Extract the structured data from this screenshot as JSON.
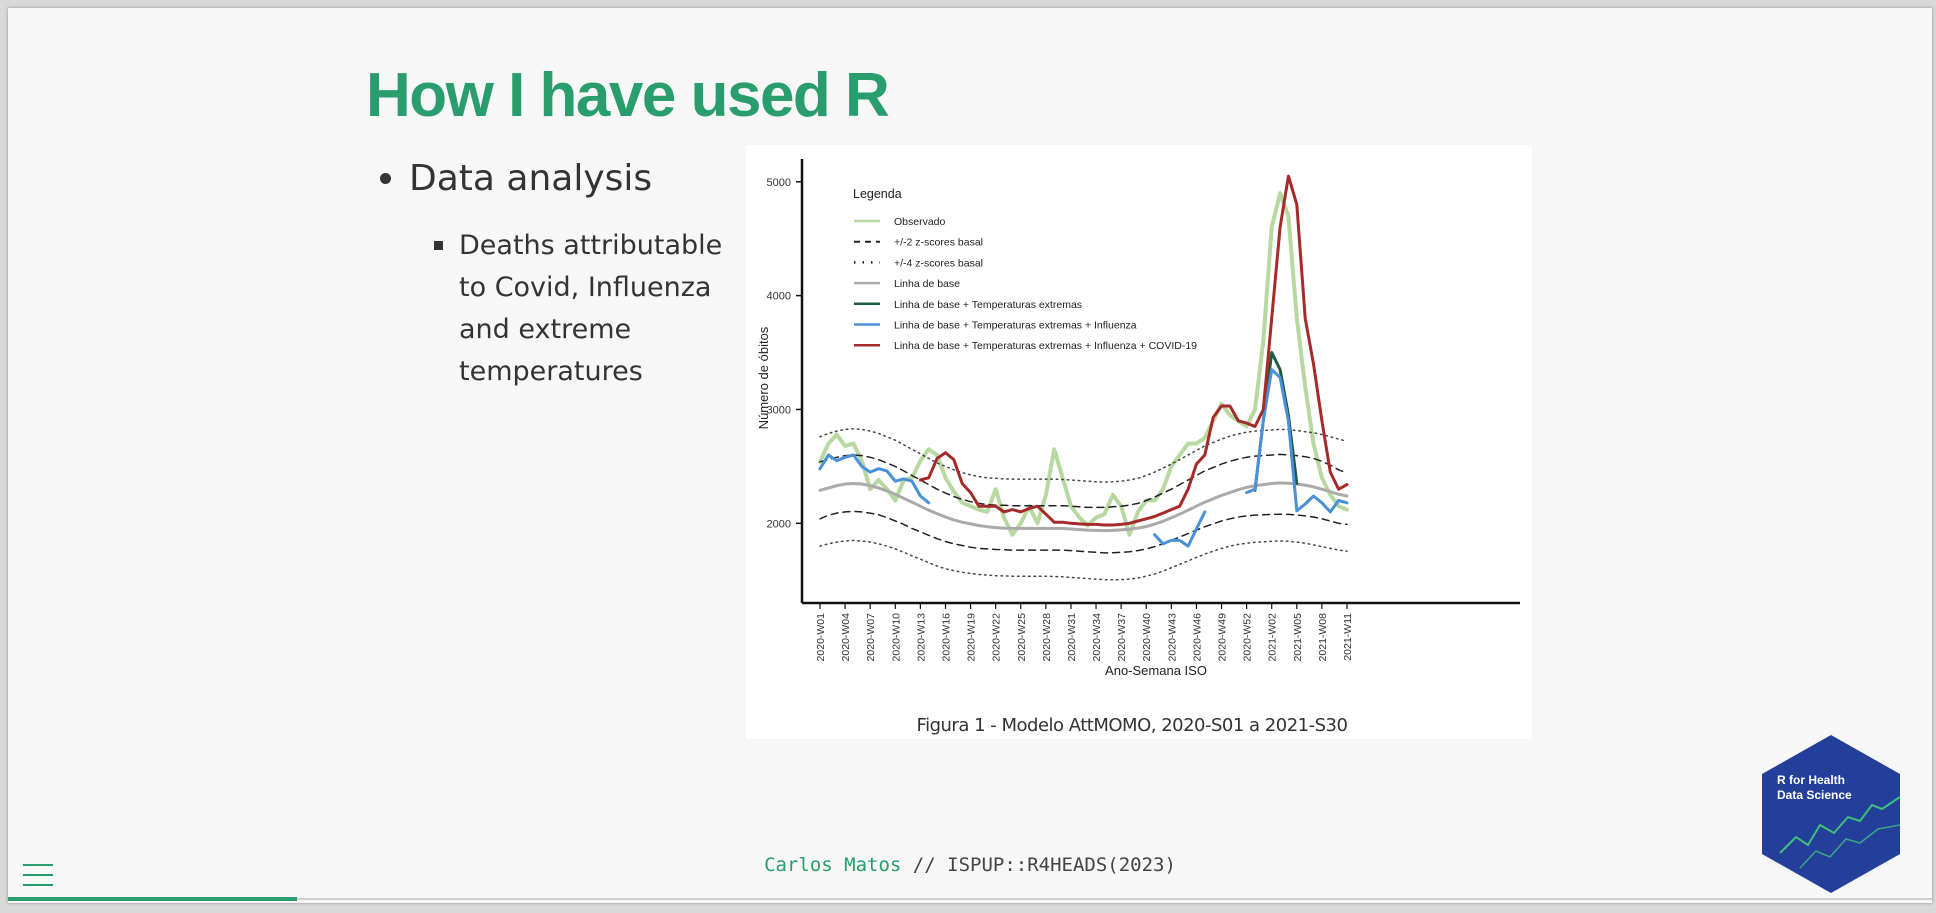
{
  "slide": {
    "title": "How I have used R",
    "bullets": [
      {
        "text": "Data analysis",
        "sub": [
          "Deaths attributable to Covid, Influenza and extreme temperatures"
        ]
      }
    ]
  },
  "figure": {
    "caption": "Figura 1 - Modelo AttMOMO, 2020-S01 a 2021-S30"
  },
  "footer": {
    "author": "Carlos Matos",
    "separator": " // ",
    "course": "ISPUP::R4HEADS(2023)"
  },
  "progress": {
    "fraction": 0.15
  },
  "logo": {
    "line1": "R for Health",
    "line2": "Data Science",
    "color": "#233f9a"
  },
  "icons": {
    "menu": "hamburger-menu-icon"
  },
  "colors": {
    "accent": "#2a9d6d",
    "observed": "#b7d8a0",
    "baseline": "#aaaaaa",
    "temp": "#1e5a3c",
    "influenza": "#4a90d9",
    "covid": "#a52a2a"
  },
  "chart_data": {
    "type": "line",
    "xlabel": "Ano-Semana ISO",
    "ylabel": "Número de óbitos",
    "legend_title": "Legenda",
    "legend_position": "top-left",
    "ylim": [
      1300,
      5200
    ],
    "yticks": [
      2000,
      3000,
      4000,
      5000
    ],
    "xticks": [
      "2020-W01",
      "2020-W04",
      "2020-W07",
      "2020-W10",
      "2020-W13",
      "2020-W16",
      "2020-W19",
      "2020-W22",
      "2020-W25",
      "2020-W28",
      "2020-W31",
      "2020-W34",
      "2020-W37",
      "2020-W40",
      "2020-W43",
      "2020-W46",
      "2020-W49",
      "2020-W52",
      "2021-W02",
      "2021-W05",
      "2021-W08",
      "2021-W11"
    ],
    "grid": false,
    "x_weeks": [
      1,
      2,
      3,
      4,
      5,
      6,
      7,
      8,
      9,
      10,
      11,
      12,
      13,
      14,
      15,
      16,
      17,
      18,
      19,
      20,
      21,
      22,
      23,
      24,
      25,
      26,
      27,
      28,
      29,
      30,
      31,
      32,
      33,
      34,
      35,
      36,
      37,
      38,
      39,
      40,
      41,
      42,
      43,
      44,
      45,
      46,
      47,
      48,
      49,
      50,
      51,
      52,
      53,
      54,
      55,
      56,
      57,
      58,
      59,
      60,
      61,
      62,
      63,
      64
    ],
    "series": [
      {
        "name": "Observado",
        "style": "solid",
        "color": "#b7d8a0",
        "width": 4,
        "values": [
          2540,
          2700,
          2780,
          2680,
          2700,
          2550,
          2300,
          2380,
          2300,
          2200,
          2380,
          2400,
          2550,
          2650,
          2600,
          2400,
          2280,
          2180,
          2150,
          2120,
          2100,
          2300,
          2050,
          1900,
          2000,
          2150,
          2000,
          2250,
          2650,
          2400,
          2150,
          2050,
          1980,
          2050,
          2080,
          2250,
          2150,
          1900,
          2100,
          2200,
          2200,
          2300,
          2500,
          2600,
          2700,
          2700,
          2750,
          2900,
          3050,
          2950,
          2900,
          2850,
          3000,
          3600,
          4600,
          4900,
          4700,
          3800,
          3200,
          2700,
          2400,
          2250,
          2150,
          2120
        ]
      },
      {
        "name": "+/-2 z-scores basal (upper)",
        "style": "dashed",
        "color": "#222222",
        "width": 1.5,
        "values": [
          2540,
          2560,
          2580,
          2595,
          2600,
          2595,
          2580,
          2560,
          2530,
          2500,
          2460,
          2420,
          2380,
          2340,
          2300,
          2265,
          2235,
          2210,
          2190,
          2175,
          2165,
          2160,
          2158,
          2155,
          2155,
          2155,
          2155,
          2155,
          2155,
          2155,
          2150,
          2145,
          2140,
          2140,
          2140,
          2145,
          2150,
          2160,
          2175,
          2200,
          2230,
          2265,
          2300,
          2340,
          2380,
          2420,
          2460,
          2490,
          2520,
          2545,
          2565,
          2580,
          2590,
          2595,
          2600,
          2605,
          2600,
          2595,
          2585,
          2570,
          2545,
          2510,
          2470,
          2440
        ]
      },
      {
        "name": "+/-2 z-scores basal (lower)",
        "style": "dashed",
        "color": "#222222",
        "width": 1.5,
        "values": [
          2040,
          2070,
          2090,
          2100,
          2105,
          2100,
          2090,
          2075,
          2050,
          2020,
          1990,
          1955,
          1925,
          1895,
          1865,
          1840,
          1820,
          1805,
          1790,
          1780,
          1775,
          1770,
          1768,
          1765,
          1765,
          1765,
          1765,
          1765,
          1765,
          1765,
          1760,
          1755,
          1750,
          1745,
          1740,
          1742,
          1745,
          1750,
          1760,
          1775,
          1795,
          1820,
          1850,
          1880,
          1910,
          1940,
          1970,
          1995,
          2020,
          2040,
          2055,
          2065,
          2072,
          2075,
          2078,
          2080,
          2078,
          2073,
          2065,
          2055,
          2040,
          2020,
          2000,
          1990
        ]
      },
      {
        "name": "+/-4 z-scores basal (upper)",
        "style": "dotted",
        "color": "#444444",
        "width": 1.5,
        "values": [
          2760,
          2790,
          2810,
          2825,
          2830,
          2825,
          2810,
          2790,
          2760,
          2730,
          2690,
          2650,
          2610,
          2570,
          2530,
          2500,
          2470,
          2445,
          2425,
          2410,
          2400,
          2395,
          2390,
          2388,
          2388,
          2388,
          2388,
          2388,
          2388,
          2385,
          2380,
          2375,
          2370,
          2365,
          2362,
          2365,
          2370,
          2380,
          2395,
          2420,
          2450,
          2485,
          2520,
          2560,
          2600,
          2640,
          2680,
          2710,
          2740,
          2765,
          2785,
          2800,
          2810,
          2815,
          2820,
          2825,
          2822,
          2815,
          2805,
          2795,
          2780,
          2760,
          2740,
          2720
        ]
      },
      {
        "name": "+/-4 z-scores basal (lower)",
        "style": "dotted",
        "color": "#444444",
        "width": 1.5,
        "values": [
          1800,
          1820,
          1835,
          1845,
          1850,
          1845,
          1835,
          1820,
          1800,
          1775,
          1745,
          1715,
          1685,
          1655,
          1625,
          1600,
          1585,
          1570,
          1560,
          1550,
          1545,
          1540,
          1538,
          1535,
          1535,
          1535,
          1535,
          1535,
          1532,
          1530,
          1525,
          1520,
          1515,
          1510,
          1505,
          1505,
          1505,
          1510,
          1520,
          1535,
          1555,
          1580,
          1610,
          1640,
          1670,
          1700,
          1730,
          1755,
          1780,
          1800,
          1815,
          1825,
          1832,
          1838,
          1842,
          1845,
          1842,
          1835,
          1825,
          1810,
          1795,
          1780,
          1765,
          1755
        ]
      },
      {
        "name": "Linha de base",
        "style": "solid",
        "color": "#aaaaaa",
        "width": 3,
        "values": [
          2290,
          2310,
          2330,
          2345,
          2350,
          2345,
          2330,
          2310,
          2285,
          2255,
          2220,
          2185,
          2150,
          2115,
          2085,
          2055,
          2030,
          2010,
          1995,
          1980,
          1970,
          1962,
          1958,
          1955,
          1955,
          1955,
          1955,
          1955,
          1955,
          1955,
          1950,
          1945,
          1940,
          1938,
          1936,
          1938,
          1942,
          1948,
          1958,
          1972,
          1992,
          2018,
          2048,
          2080,
          2115,
          2150,
          2185,
          2215,
          2245,
          2270,
          2295,
          2315,
          2330,
          2340,
          2350,
          2355,
          2352,
          2345,
          2335,
          2320,
          2300,
          2278,
          2255,
          2240
        ]
      },
      {
        "name": "Linha de base + Temperaturas extremas",
        "style": "solid",
        "color": "#1e5a3c",
        "width": 3,
        "values": [
          null,
          null,
          null,
          null,
          null,
          null,
          null,
          null,
          null,
          null,
          null,
          null,
          null,
          null,
          null,
          null,
          null,
          null,
          null,
          null,
          null,
          null,
          null,
          null,
          null,
          null,
          null,
          null,
          null,
          null,
          null,
          null,
          null,
          null,
          null,
          null,
          null,
          null,
          null,
          null,
          null,
          null,
          null,
          null,
          null,
          null,
          null,
          null,
          null,
          null,
          null,
          null,
          2290,
          2900,
          3500,
          3350,
          2950,
          2350,
          null,
          null,
          null,
          null,
          null,
          null
        ]
      },
      {
        "name": "Linha de base + Temperaturas extremas + Influenza",
        "style": "solid",
        "color": "#4a90d9",
        "width": 3,
        "values": [
          2480,
          2600,
          2550,
          2580,
          2600,
          2500,
          2450,
          2480,
          2460,
          2370,
          2390,
          2370,
          2240,
          2180,
          null,
          null,
          null,
          null,
          null,
          null,
          null,
          null,
          null,
          null,
          null,
          null,
          null,
          null,
          null,
          null,
          null,
          null,
          null,
          null,
          null,
          null,
          null,
          null,
          null,
          null,
          1900,
          1820,
          1850,
          1850,
          1800,
          1950,
          2100,
          null,
          null,
          null,
          null,
          2270,
          2300,
          2900,
          3350,
          3280,
          2900,
          2110,
          2170,
          2240,
          2180,
          2100,
          2200,
          2180
        ]
      },
      {
        "name": "Linha de base + Temperaturas extremas + Influenza + COVID-19",
        "style": "solid",
        "color": "#a52a2a",
        "width": 3,
        "values": [
          null,
          null,
          null,
          null,
          null,
          null,
          null,
          null,
          null,
          null,
          null,
          null,
          2380,
          2400,
          2570,
          2620,
          2560,
          2350,
          2270,
          2150,
          2150,
          2150,
          2100,
          2120,
          2100,
          2130,
          2150,
          2080,
          2010,
          2010,
          2000,
          1995,
          1990,
          1990,
          1985,
          1985,
          1990,
          2000,
          2020,
          2040,
          2060,
          2090,
          2120,
          2150,
          2300,
          2520,
          2600,
          2930,
          3030,
          3030,
          2900,
          2880,
          2850,
          3000,
          3800,
          4600,
          5050,
          4800,
          3800,
          3400,
          2900,
          2450,
          2300,
          2340
        ]
      }
    ]
  }
}
